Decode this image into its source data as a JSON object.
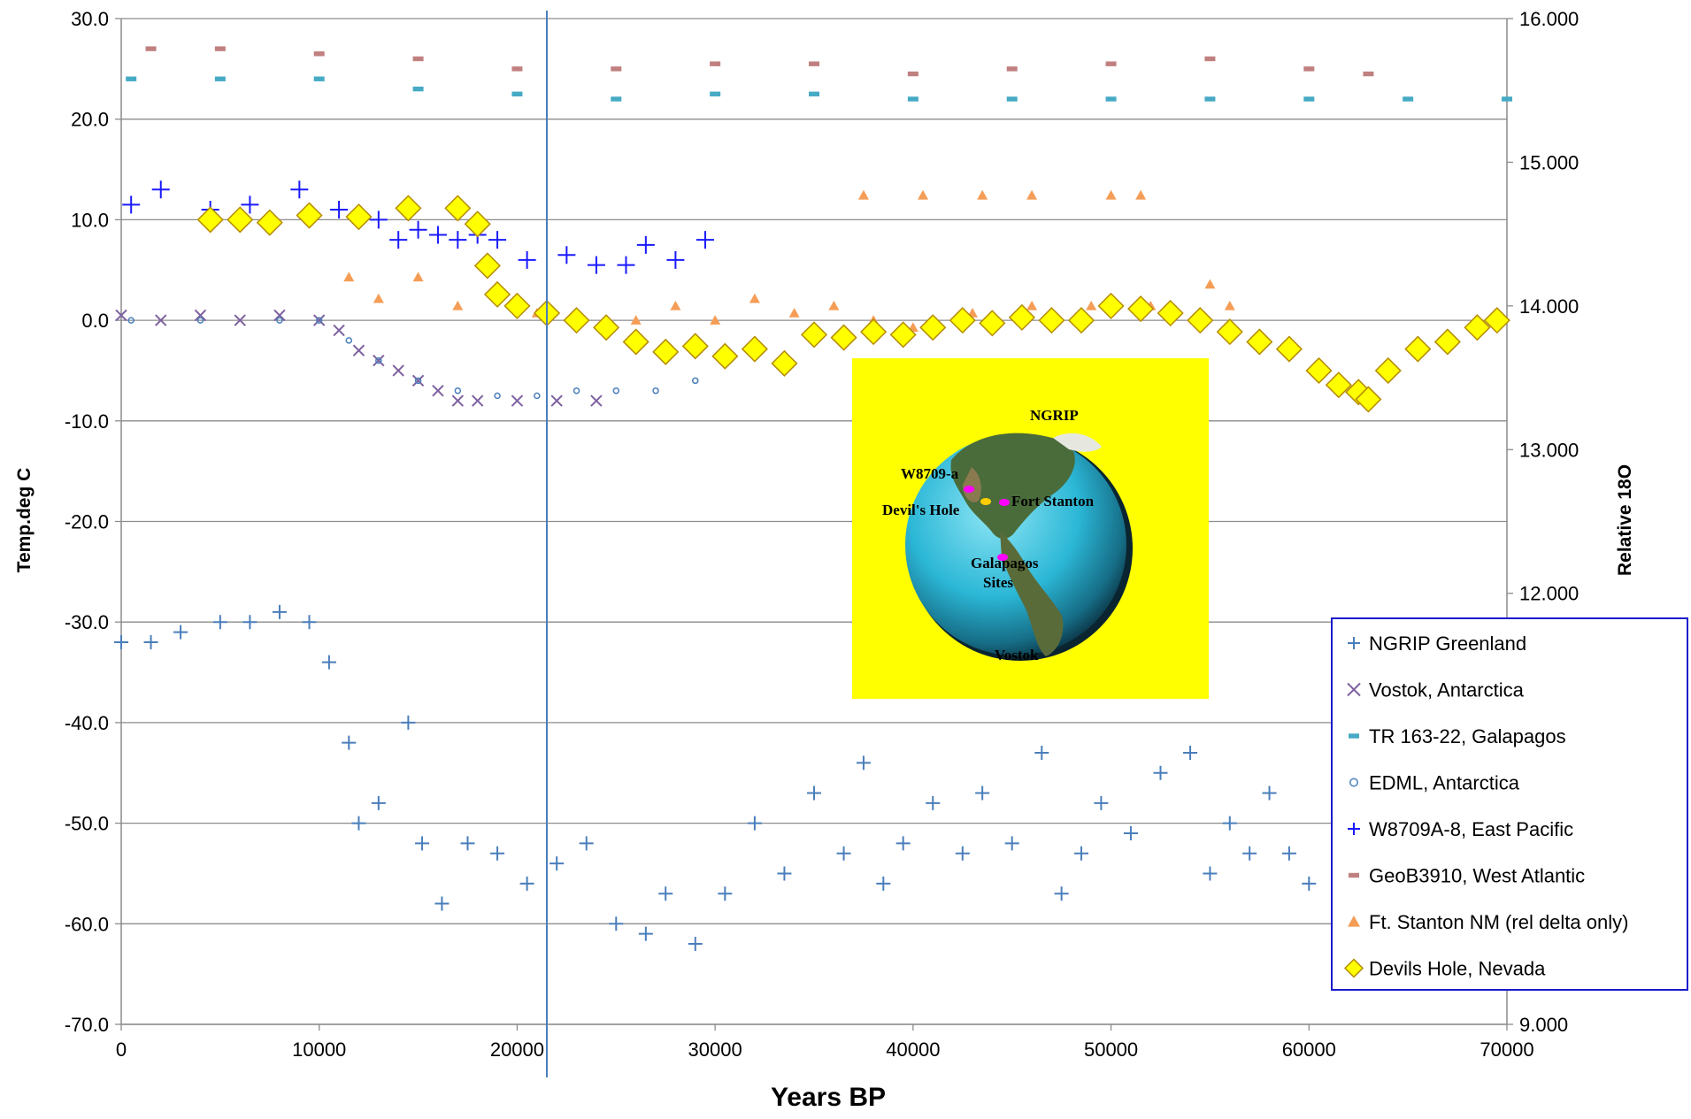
{
  "chart_data": {
    "type": "scatter",
    "xlabel": "Years BP",
    "ylabel": "Temp.deg C",
    "y2label": "Relative 18O",
    "xlim": [
      0,
      70000
    ],
    "ylim": [
      -70,
      30
    ],
    "y2lim": [
      9,
      16
    ],
    "x_ticks": [
      "0",
      "10000",
      "20000",
      "30000",
      "40000",
      "50000",
      "60000",
      "70000"
    ],
    "y_ticks": [
      "30.0",
      "20.0",
      "10.0",
      "0.0",
      "-10.0",
      "-20.0",
      "-30.0",
      "-40.0",
      "-50.0",
      "-60.0",
      "-70.0"
    ],
    "y2_ticks": [
      "16.000",
      "15.000",
      "14.000",
      "13.000",
      "12.000",
      "9.000"
    ],
    "grid": "horizontal",
    "legend_position": "bottom-right",
    "reference_line_x": 21500,
    "series": [
      {
        "name": "NGRIP Greenland",
        "marker": "plus",
        "color": "#4a7ebb",
        "axis": "left",
        "points": [
          [
            0,
            -32
          ],
          [
            1500,
            -32
          ],
          [
            3000,
            -31
          ],
          [
            5000,
            -30
          ],
          [
            6500,
            -30
          ],
          [
            8000,
            -29
          ],
          [
            9500,
            -30
          ],
          [
            10500,
            -34
          ],
          [
            11500,
            -42
          ],
          [
            12000,
            -50
          ],
          [
            13000,
            -48
          ],
          [
            14500,
            -40
          ],
          [
            15200,
            -52
          ],
          [
            16200,
            -58
          ],
          [
            17500,
            -52
          ],
          [
            19000,
            -53
          ],
          [
            20500,
            -56
          ],
          [
            22000,
            -54
          ],
          [
            23500,
            -52
          ],
          [
            25000,
            -60
          ],
          [
            26500,
            -61
          ],
          [
            27500,
            -57
          ],
          [
            29000,
            -62
          ],
          [
            30500,
            -57
          ],
          [
            32000,
            -50
          ],
          [
            33500,
            -55
          ],
          [
            35000,
            -47
          ],
          [
            36500,
            -53
          ],
          [
            37500,
            -44
          ],
          [
            38500,
            -56
          ],
          [
            39500,
            -52
          ],
          [
            41000,
            -48
          ],
          [
            42500,
            -53
          ],
          [
            43500,
            -47
          ],
          [
            45000,
            -52
          ],
          [
            46500,
            -43
          ],
          [
            47500,
            -57
          ],
          [
            48500,
            -53
          ],
          [
            49500,
            -48
          ],
          [
            51000,
            -51
          ],
          [
            52500,
            -45
          ],
          [
            54000,
            -43
          ],
          [
            55000,
            -55
          ],
          [
            56000,
            -50
          ],
          [
            57000,
            -53
          ],
          [
            58000,
            -47
          ],
          [
            59000,
            -53
          ],
          [
            60000,
            -56
          ]
        ]
      },
      {
        "name": "Vostok, Antarctica",
        "marker": "x",
        "color": "#7d60a0",
        "axis": "left",
        "points": [
          [
            0,
            0.5
          ],
          [
            2000,
            0
          ],
          [
            4000,
            0.5
          ],
          [
            6000,
            0
          ],
          [
            8000,
            0.5
          ],
          [
            10000,
            0
          ],
          [
            11000,
            -1
          ],
          [
            12000,
            -3
          ],
          [
            13000,
            -4
          ],
          [
            14000,
            -5
          ],
          [
            15000,
            -6
          ],
          [
            16000,
            -7
          ],
          [
            17000,
            -8
          ],
          [
            18000,
            -8
          ],
          [
            20000,
            -8
          ],
          [
            22000,
            -8
          ],
          [
            24000,
            -8
          ]
        ]
      },
      {
        "name": "TR 163-22, Galapagos",
        "marker": "dash",
        "color": "#46aac5",
        "axis": "left",
        "points": [
          [
            500,
            24
          ],
          [
            5000,
            24
          ],
          [
            10000,
            24
          ],
          [
            15000,
            23
          ],
          [
            20000,
            22.5
          ],
          [
            25000,
            22
          ],
          [
            30000,
            22.5
          ],
          [
            35000,
            22.5
          ],
          [
            40000,
            22
          ],
          [
            45000,
            22
          ],
          [
            50000,
            22
          ],
          [
            55000,
            22
          ],
          [
            60000,
            22
          ],
          [
            65000,
            22
          ],
          [
            70000,
            22
          ]
        ]
      },
      {
        "name": "EDML, Antarctica",
        "marker": "circle",
        "color": "#4a7ebb",
        "axis": "left",
        "points": [
          [
            500,
            0
          ],
          [
            4000,
            0
          ],
          [
            8000,
            0
          ],
          [
            10000,
            0
          ],
          [
            11500,
            -2
          ],
          [
            13000,
            -4
          ],
          [
            15000,
            -6
          ],
          [
            17000,
            -7
          ],
          [
            19000,
            -7.5
          ],
          [
            21000,
            -7.5
          ],
          [
            23000,
            -7
          ],
          [
            25000,
            -7
          ],
          [
            27000,
            -7
          ],
          [
            29000,
            -6
          ]
        ]
      },
      {
        "name": "W8709A-8, East Pacific",
        "marker": "plus",
        "color": "#1a1aff",
        "axis": "left",
        "points": [
          [
            500,
            11.5
          ],
          [
            2000,
            13
          ],
          [
            4500,
            11
          ],
          [
            6500,
            11.5
          ],
          [
            9000,
            13
          ],
          [
            11000,
            11
          ],
          [
            13000,
            10
          ],
          [
            14000,
            8
          ],
          [
            15000,
            9
          ],
          [
            16000,
            8.5
          ],
          [
            17000,
            8
          ],
          [
            18000,
            8.5
          ],
          [
            19000,
            8
          ],
          [
            20500,
            6
          ],
          [
            22500,
            6.5
          ],
          [
            24000,
            5.5
          ],
          [
            25500,
            5.5
          ],
          [
            26500,
            7.5
          ],
          [
            28000,
            6
          ],
          [
            29500,
            8
          ]
        ]
      },
      {
        "name": "GeoB3910, West Atlantic",
        "marker": "dash",
        "color": "#c0807f",
        "axis": "left",
        "points": [
          [
            1500,
            27
          ],
          [
            5000,
            27
          ],
          [
            10000,
            26.5
          ],
          [
            15000,
            26
          ],
          [
            20000,
            25
          ],
          [
            25000,
            25
          ],
          [
            30000,
            25.5
          ],
          [
            35000,
            25.5
          ],
          [
            40000,
            24.5
          ],
          [
            45000,
            25
          ],
          [
            50000,
            25.5
          ],
          [
            55000,
            26
          ],
          [
            60000,
            25
          ],
          [
            63000,
            24.5
          ]
        ]
      },
      {
        "name": "Ft. Stanton NM (rel delta only)",
        "marker": "triangle",
        "color": "#f59d56",
        "axis": "right",
        "points": [
          [
            11500,
            14.2
          ],
          [
            13000,
            14.05
          ],
          [
            15000,
            14.2
          ],
          [
            17000,
            14.0
          ],
          [
            19000,
            14.1
          ],
          [
            21000,
            13.95
          ],
          [
            23000,
            13.9
          ],
          [
            26000,
            13.9
          ],
          [
            28000,
            14.0
          ],
          [
            30000,
            13.9
          ],
          [
            32000,
            14.05
          ],
          [
            34000,
            13.95
          ],
          [
            36000,
            14.0
          ],
          [
            38000,
            13.9
          ],
          [
            40000,
            13.85
          ],
          [
            43000,
            13.95
          ],
          [
            46000,
            14.0
          ],
          [
            49000,
            14.0
          ],
          [
            52000,
            14.0
          ],
          [
            55000,
            14.15
          ],
          [
            56000,
            14.0
          ],
          [
            37500,
            14.77
          ],
          [
            40500,
            14.77
          ],
          [
            43500,
            14.77
          ],
          [
            46000,
            14.77
          ],
          [
            50000,
            14.77
          ],
          [
            51500,
            14.77
          ]
        ]
      },
      {
        "name": "Devils Hole, Nevada",
        "marker": "diamond",
        "color": "#ffff00",
        "axis": "right",
        "points": [
          [
            4500,
            14.6
          ],
          [
            6000,
            14.6
          ],
          [
            7500,
            14.58
          ],
          [
            9500,
            14.63
          ],
          [
            12000,
            14.62
          ],
          [
            14500,
            14.68
          ],
          [
            17000,
            14.68
          ],
          [
            18000,
            14.57
          ],
          [
            18500,
            14.28
          ],
          [
            19000,
            14.08
          ],
          [
            20000,
            14.0
          ],
          [
            21500,
            13.95
          ],
          [
            23000,
            13.9
          ],
          [
            24500,
            13.85
          ],
          [
            26000,
            13.75
          ],
          [
            27500,
            13.68
          ],
          [
            29000,
            13.72
          ],
          [
            30500,
            13.65
          ],
          [
            32000,
            13.7
          ],
          [
            33500,
            13.6
          ],
          [
            35000,
            13.8
          ],
          [
            36500,
            13.78
          ],
          [
            38000,
            13.82
          ],
          [
            39500,
            13.8
          ],
          [
            41000,
            13.85
          ],
          [
            42500,
            13.9
          ],
          [
            44000,
            13.88
          ],
          [
            45500,
            13.92
          ],
          [
            47000,
            13.9
          ],
          [
            48500,
            13.9
          ],
          [
            50000,
            14.0
          ],
          [
            51500,
            13.98
          ],
          [
            53000,
            13.95
          ],
          [
            54500,
            13.9
          ],
          [
            56000,
            13.82
          ],
          [
            57500,
            13.75
          ],
          [
            59000,
            13.7
          ],
          [
            60500,
            13.55
          ],
          [
            61500,
            13.45
          ],
          [
            62500,
            13.4
          ],
          [
            63000,
            13.35
          ],
          [
            64000,
            13.55
          ],
          [
            65500,
            13.7
          ],
          [
            67000,
            13.75
          ],
          [
            68500,
            13.85
          ],
          [
            69500,
            13.9
          ]
        ]
      }
    ]
  },
  "inset": {
    "background": "#ffff00",
    "labels": {
      "ngrip": "NGRIP",
      "w8709": "W8709-a",
      "devils_hole": "Devil's Hole",
      "fort_stanton": "Fort Stanton",
      "galapagos": "Galapagos",
      "galapagos_2": "Sites",
      "vostok": "Vostok"
    }
  }
}
